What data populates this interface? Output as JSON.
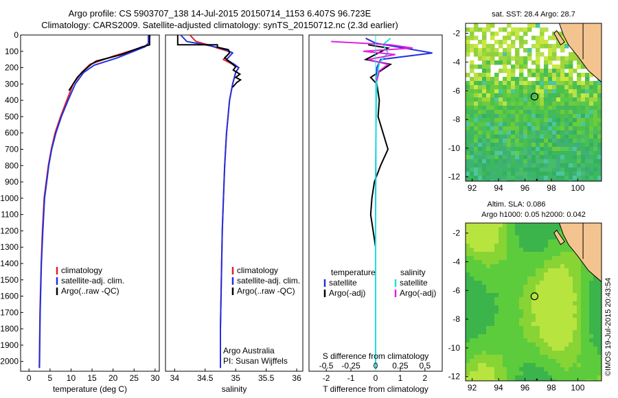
{
  "header": {
    "line1": "Argo profile: CS 5903707_138 14-Jul-2015 20150714_1153 6.407S 96.723E",
    "line2": "Climatology: CARS2009. Satellite-adjusted climatology: synTS_20150712.nc (2.3d earlier)"
  },
  "side_stamp": "©IMOS 19-Jul-2015 20:43:54",
  "colors": {
    "climatology": "#e02020",
    "satellite": "#2030e0",
    "argo": "#000000",
    "sat_salinity": "#20e0e0",
    "argo_salinity": "#e020e0",
    "land": "#f4c490"
  },
  "chart_data": [
    {
      "id": "temperature",
      "type": "line",
      "xlabel": "temperature (deg C)",
      "ylabel": "",
      "xlim": [
        -2,
        31
      ],
      "ylim": [
        2060,
        0
      ],
      "y_reversed": true,
      "xticks": [
        0,
        5,
        10,
        15,
        20,
        25,
        30
      ],
      "yticks": [
        0,
        100,
        200,
        300,
        400,
        500,
        600,
        700,
        800,
        900,
        1000,
        1100,
        1200,
        1300,
        1400,
        1500,
        1600,
        1700,
        1800,
        1900,
        2000
      ],
      "legend": [
        "climatology",
        "satellite-adj. clim.",
        "Argo(..raw -QC)"
      ],
      "series": [
        {
          "name": "climatology",
          "color": "#e02020",
          "x": [
            28.8,
            28.5,
            27.5,
            20,
            14.5,
            12.5,
            10.5,
            9,
            7.5,
            6.2,
            5.3,
            4.6,
            4.1,
            3.6,
            3.2,
            2.9,
            2.6,
            2.45
          ],
          "y": [
            0,
            50,
            70,
            130,
            180,
            230,
            300,
            400,
            500,
            600,
            700,
            800,
            900,
            1000,
            1200,
            1400,
            1700,
            2040
          ]
        },
        {
          "name": "satellite-adj. clim.",
          "color": "#2030e0",
          "x": [
            28.4,
            28.4,
            27.6,
            21,
            15.5,
            13,
            11,
            9.3,
            7.7,
            6.4,
            5.4,
            4.7,
            4.2,
            3.7,
            3.3,
            2.95,
            2.65,
            2.5
          ],
          "y": [
            0,
            50,
            72,
            140,
            185,
            230,
            300,
            400,
            500,
            600,
            700,
            800,
            900,
            1000,
            1200,
            1400,
            1700,
            2040
          ]
        },
        {
          "name": "Argo(..raw -QC)",
          "color": "#000000",
          "x": [
            28.7,
            28.7,
            27,
            22,
            16,
            14.8,
            13,
            11.5,
            10.5,
            9.5
          ],
          "y": [
            0,
            60,
            72,
            120,
            160,
            180,
            220,
            260,
            300,
            340
          ]
        }
      ]
    },
    {
      "id": "salinity",
      "type": "line",
      "xlabel": "salinity",
      "ylabel": "",
      "xlim": [
        33.85,
        36.1
      ],
      "ylim": [
        2060,
        0
      ],
      "y_reversed": true,
      "xticks": [
        34,
        34.5,
        35,
        35.5,
        36
      ],
      "legend": [
        "climatology",
        "satellite-adj. clim.",
        "Argo(..raw -QC)"
      ],
      "annotations": [
        "Argo Australia",
        "PI: Susan Wijffels"
      ],
      "series": [
        {
          "name": "climatology",
          "color": "#e02020",
          "x": [
            34.25,
            34.35,
            34.55,
            34.7,
            34.88,
            34.9,
            34.8,
            34.95,
            35.05,
            35.0,
            34.95,
            34.9,
            34.85,
            34.82,
            34.8,
            34.78,
            34.77,
            34.76,
            34.75,
            34.75
          ],
          "y": [
            0,
            40,
            60,
            80,
            100,
            110,
            150,
            180,
            200,
            230,
            300,
            400,
            600,
            800,
            1000,
            1200,
            1400,
            1600,
            1800,
            2040
          ]
        },
        {
          "name": "satellite-adj. clim.",
          "color": "#2030e0",
          "x": [
            34.1,
            34.2,
            34.5,
            34.75,
            34.9,
            34.95,
            34.85,
            34.98,
            35.05,
            35.0,
            34.95,
            34.9,
            34.85,
            34.82,
            34.8,
            34.78,
            34.77,
            34.76,
            34.75,
            34.75
          ],
          "y": [
            0,
            40,
            60,
            80,
            100,
            110,
            150,
            180,
            200,
            230,
            300,
            400,
            600,
            800,
            1000,
            1200,
            1400,
            1600,
            1800,
            2040
          ]
        },
        {
          "name": "Argo(..raw -QC)",
          "color": "#000000",
          "x": [
            34.05,
            34.05,
            34.7,
            34.7,
            34.88,
            34.9,
            34.82,
            34.92,
            35.0,
            34.96,
            35.07,
            35.0,
            35.08,
            35.02,
            34.95
          ],
          "y": [
            0,
            60,
            60,
            75,
            90,
            110,
            140,
            170,
            195,
            215,
            240,
            260,
            275,
            290,
            320
          ]
        }
      ]
    },
    {
      "id": "difference",
      "type": "line",
      "title": "S difference from climatology",
      "xlabel": "T difference from climatology",
      "ylabel": "",
      "xlim": [
        -2.7,
        2.7
      ],
      "ylim": [
        2060,
        0
      ],
      "y_reversed": true,
      "xticks": [
        -2,
        -1,
        0,
        1,
        2
      ],
      "top_xticks": [
        "-0.5",
        "-0.25",
        "0",
        "0.25",
        "0.5"
      ],
      "legend_groups": [
        "temperature",
        "salinity"
      ],
      "legend": [
        "satellite",
        "Argo(-adj)",
        "satellite",
        "Argo(-adj)"
      ],
      "series": [
        {
          "name": "satellite",
          "group": "temperature",
          "color": "#2030e0",
          "x": [
            -0.4,
            0,
            2.3,
            0.2,
            0.05,
            0.02,
            0.0,
            0.0
          ],
          "y": [
            20,
            50,
            110,
            150,
            200,
            400,
            1000,
            2040
          ]
        },
        {
          "name": "Argo(-adj)",
          "group": "temperature",
          "color": "#000000",
          "x": [
            -0.3,
            0.5,
            -0.4,
            0.6,
            0.2,
            -0.2,
            0.05,
            0.15,
            0.1,
            0.3,
            0.5,
            0.2,
            -0.05,
            -0.15,
            -0.2,
            -0.1,
            0.0
          ],
          "y": [
            60,
            80,
            150,
            180,
            220,
            260,
            300,
            400,
            500,
            600,
            700,
            800,
            900,
            1000,
            1100,
            1200,
            1300
          ]
        },
        {
          "name": "satellite",
          "group": "salinity",
          "color": "#20e0e0",
          "x": [
            0.6,
            0.3,
            0.5,
            0.15,
            0.05,
            0.02,
            0.0,
            0.0
          ],
          "y": [
            20,
            60,
            110,
            170,
            260,
            500,
            1200,
            2040
          ]
        },
        {
          "name": "Argo(-adj)",
          "group": "salinity",
          "color": "#e020e0",
          "x": [
            -1.8,
            0.6,
            1.5,
            -0.5,
            0.8,
            -0.3,
            0.5,
            0.15,
            0.05
          ],
          "y": [
            40,
            60,
            80,
            100,
            120,
            150,
            180,
            220,
            280
          ]
        }
      ]
    },
    {
      "id": "sst_map",
      "type": "heatmap",
      "title": "sat. SST: 28.4 Argo: 28.7",
      "xlim": [
        91.5,
        101.8
      ],
      "ylim": [
        -12.3,
        -1.3
      ],
      "xticks": [
        92,
        94,
        96,
        98,
        100
      ],
      "yticks": [
        -2,
        -4,
        -6,
        -8,
        -10,
        -12
      ],
      "marker": {
        "lon": 96.723,
        "lat": -6.407
      }
    },
    {
      "id": "sla_map",
      "type": "heatmap",
      "title": "Altim. SLA: 0.086",
      "subtitle": "Argo h1000: 0.05 h2000: 0.042",
      "xlim": [
        91.5,
        101.8
      ],
      "ylim": [
        -12.3,
        -1.3
      ],
      "xticks": [
        92,
        94,
        96,
        98,
        100
      ],
      "yticks": [
        -2,
        -4,
        -6,
        -8,
        -10,
        -12
      ],
      "marker": {
        "lon": 96.723,
        "lat": -6.407
      }
    }
  ]
}
